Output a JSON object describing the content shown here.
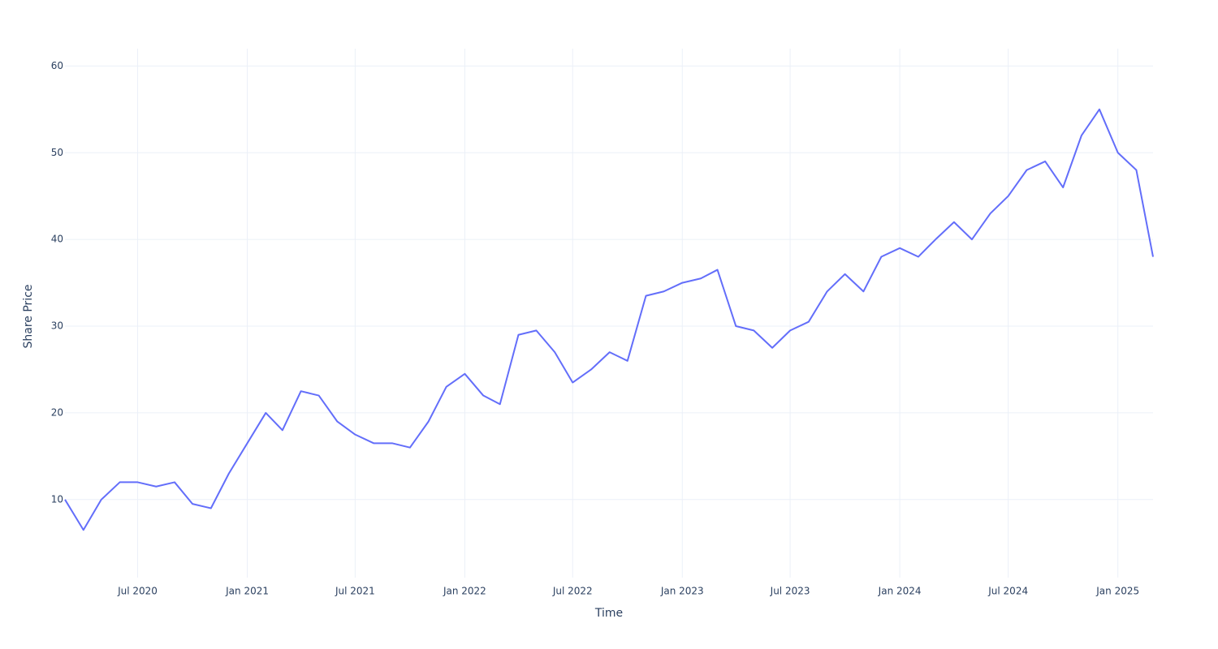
{
  "chart_data": {
    "type": "line",
    "xlabel": "Time",
    "ylabel": "Share Price",
    "x": [
      "2020-03",
      "2020-04",
      "2020-05",
      "2020-06",
      "2020-07",
      "2020-08",
      "2020-09",
      "2020-10",
      "2020-11",
      "2020-12",
      "2021-01",
      "2021-02",
      "2021-03",
      "2021-04",
      "2021-05",
      "2021-06",
      "2021-07",
      "2021-08",
      "2021-09",
      "2021-10",
      "2021-11",
      "2021-12",
      "2022-01",
      "2022-02",
      "2022-03",
      "2022-04",
      "2022-05",
      "2022-06",
      "2022-07",
      "2022-08",
      "2022-09",
      "2022-10",
      "2022-11",
      "2022-12",
      "2023-01",
      "2023-02",
      "2023-03",
      "2023-04",
      "2023-05",
      "2023-06",
      "2023-07",
      "2023-08",
      "2023-09",
      "2023-10",
      "2023-11",
      "2023-12",
      "2024-01",
      "2024-02",
      "2024-03",
      "2024-04",
      "2024-05",
      "2024-06",
      "2024-07",
      "2024-08",
      "2024-09",
      "2024-10",
      "2024-11",
      "2024-12",
      "2025-01",
      "2025-02",
      "2025-03"
    ],
    "series": [
      {
        "name": "Share Price",
        "color": "#636efa",
        "values": [
          10,
          6.5,
          10,
          12,
          12,
          11.5,
          12,
          9.5,
          9,
          13,
          16.5,
          20,
          18,
          22.5,
          22,
          19,
          17.5,
          16.5,
          16.5,
          16,
          19,
          23,
          24.5,
          22,
          21,
          29,
          29.5,
          27,
          23.5,
          25,
          27,
          26,
          33.5,
          34,
          35,
          35.5,
          36.5,
          30,
          29.5,
          27.5,
          29.5,
          30.5,
          34,
          36,
          34,
          38,
          39,
          38,
          40,
          42,
          40,
          43,
          45,
          48,
          49,
          46,
          52,
          55,
          50,
          48,
          38
        ]
      }
    ],
    "xlim": [
      "2020-03",
      "2025-03"
    ],
    "xticks": [
      {
        "value": "2020-07",
        "label": "Jul 2020"
      },
      {
        "value": "2021-01",
        "label": "Jan 2021"
      },
      {
        "value": "2021-07",
        "label": "Jul 2021"
      },
      {
        "value": "2022-01",
        "label": "Jan 2022"
      },
      {
        "value": "2022-07",
        "label": "Jul 2022"
      },
      {
        "value": "2023-01",
        "label": "Jan 2023"
      },
      {
        "value": "2023-07",
        "label": "Jul 2023"
      },
      {
        "value": "2024-01",
        "label": "Jan 2024"
      },
      {
        "value": "2024-07",
        "label": "Jul 2024"
      },
      {
        "value": "2025-01",
        "label": "Jan 2025"
      }
    ],
    "ylim": [
      1,
      62
    ],
    "yticks": [
      10,
      20,
      30,
      40,
      50,
      60
    ],
    "grid": true
  }
}
